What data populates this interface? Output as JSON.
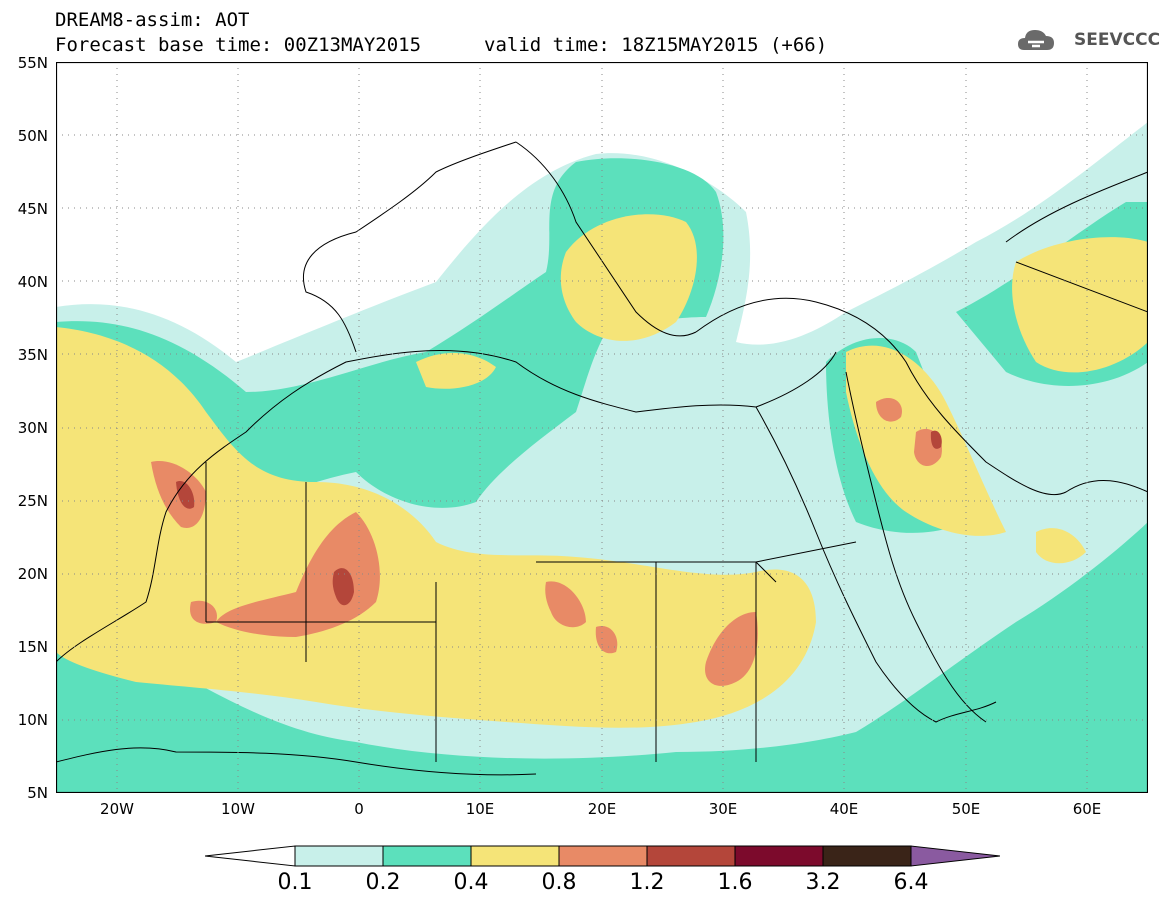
{
  "header": {
    "title": "DREAM8-assim: AOT",
    "base_time": "Forecast base time: 00Z13MAY2015",
    "valid_time": "valid time: 18Z15MAY2015 (+66)"
  },
  "logo": {
    "text": "SEEVCCC",
    "icon": "cloud-icon"
  },
  "map": {
    "lat_labels": [
      "55N",
      "50N",
      "45N",
      "40N",
      "35N",
      "30N",
      "25N",
      "20N",
      "15N",
      "10N",
      "5N"
    ],
    "lon_labels": [
      "20W",
      "10W",
      "0",
      "10E",
      "20E",
      "30E",
      "40E",
      "50E",
      "60E"
    ],
    "lat_range": [
      5,
      55
    ],
    "lon_range": [
      -25,
      65
    ],
    "grid": "dotted"
  },
  "colorbar": {
    "levels": [
      "0.1",
      "0.2",
      "0.4",
      "0.8",
      "1.2",
      "1.6",
      "3.2",
      "6.4"
    ],
    "colors": [
      "#ffffff",
      "#c8f0ea",
      "#5ce0bc",
      "#f5e478",
      "#e88a66",
      "#b4463a",
      "#7c0a2c",
      "#3a2418",
      "#8a5aa0"
    ]
  },
  "fields": {
    "c1": "#c8f0ea",
    "c2": "#5ce0bc",
    "c3": "#f5e478",
    "c4": "#e88a66",
    "c5": "#b4463a"
  }
}
